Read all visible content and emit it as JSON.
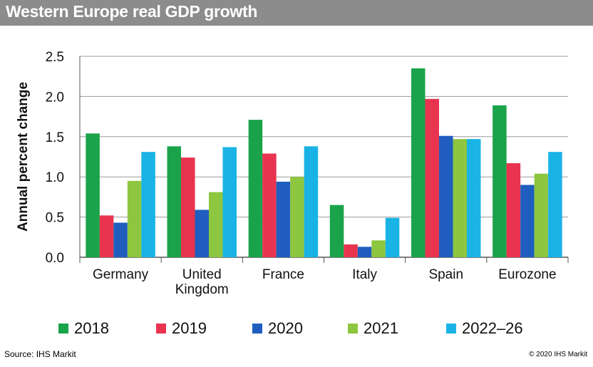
{
  "header": {
    "title": "Western Europe real GDP growth"
  },
  "footer": {
    "source": "Source: IHS Markit",
    "copyright": "© 2020 IHS Markit"
  },
  "chart_data": {
    "type": "bar",
    "title": "Western Europe real GDP growth",
    "xlabel": "",
    "ylabel": "Annual percent change",
    "ylim": [
      0,
      2.5
    ],
    "yticks": [
      "0.0",
      "0.5",
      "1.0",
      "1.5",
      "2.0",
      "2.5"
    ],
    "grid": true,
    "legend_position": "bottom",
    "categories": [
      {
        "lines": [
          "Germany"
        ]
      },
      {
        "lines": [
          "United",
          "Kingdom"
        ]
      },
      {
        "lines": [
          "France"
        ]
      },
      {
        "lines": [
          "Italy"
        ]
      },
      {
        "lines": [
          "Spain"
        ]
      },
      {
        "lines": [
          "Eurozone"
        ]
      }
    ],
    "series": [
      {
        "name": "2018",
        "color": "#1aa34a",
        "values": [
          1.54,
          1.38,
          1.71,
          0.65,
          2.35,
          1.89
        ]
      },
      {
        "name": "2019",
        "color": "#e8344f",
        "values": [
          0.52,
          1.24,
          1.29,
          0.16,
          1.97,
          1.17
        ]
      },
      {
        "name": "2020",
        "color": "#1f5ebf",
        "values": [
          0.43,
          0.59,
          0.94,
          0.13,
          1.51,
          0.9
        ]
      },
      {
        "name": "2021",
        "color": "#8dc63f",
        "values": [
          0.95,
          0.81,
          1.0,
          0.21,
          1.47,
          1.04
        ]
      },
      {
        "name": "2022–26",
        "color": "#19b3e6",
        "values": [
          1.31,
          1.37,
          1.38,
          0.49,
          1.47,
          1.31
        ]
      }
    ]
  }
}
